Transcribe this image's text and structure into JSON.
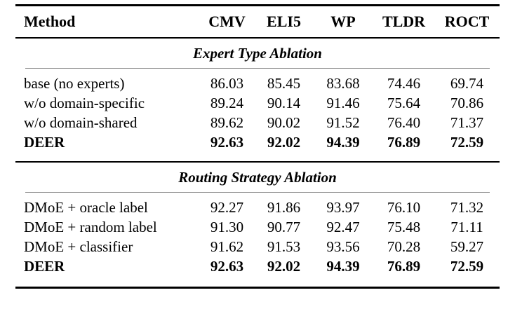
{
  "colors": {
    "background": "#ffffff",
    "text": "#000000",
    "rule_thick": "#000000",
    "rule_thin": "#8a8a8a"
  },
  "table": {
    "columns": [
      "Method",
      "CMV",
      "ELI5",
      "WP",
      "TLDR",
      "ROCT"
    ],
    "sections": [
      {
        "title": "Expert Type Ablation",
        "rows": [
          {
            "method": "base (no experts)",
            "bold": false,
            "values": [
              "86.03",
              "85.45",
              "83.68",
              "74.46",
              "69.74"
            ]
          },
          {
            "method": "w/o domain-specific",
            "bold": false,
            "values": [
              "89.24",
              "90.14",
              "91.46",
              "75.64",
              "70.86"
            ]
          },
          {
            "method": "w/o domain-shared",
            "bold": false,
            "values": [
              "89.62",
              "90.02",
              "91.52",
              "76.40",
              "71.37"
            ]
          },
          {
            "method": "DEER",
            "bold": true,
            "values": [
              "92.63",
              "92.02",
              "94.39",
              "76.89",
              "72.59"
            ]
          }
        ]
      },
      {
        "title": "Routing Strategy Ablation",
        "rows": [
          {
            "method": "DMoE + oracle label",
            "bold": false,
            "values": [
              "92.27",
              "91.86",
              "93.97",
              "76.10",
              "71.32"
            ]
          },
          {
            "method": "DMoE + random label",
            "bold": false,
            "values": [
              "91.30",
              "90.77",
              "92.47",
              "75.48",
              "71.11"
            ]
          },
          {
            "method": "DMoE + classifier",
            "bold": false,
            "values": [
              "91.62",
              "91.53",
              "93.56",
              "70.28",
              "59.27"
            ]
          },
          {
            "method": "DEER",
            "bold": true,
            "values": [
              "92.63",
              "92.02",
              "94.39",
              "76.89",
              "72.59"
            ]
          }
        ]
      }
    ]
  }
}
